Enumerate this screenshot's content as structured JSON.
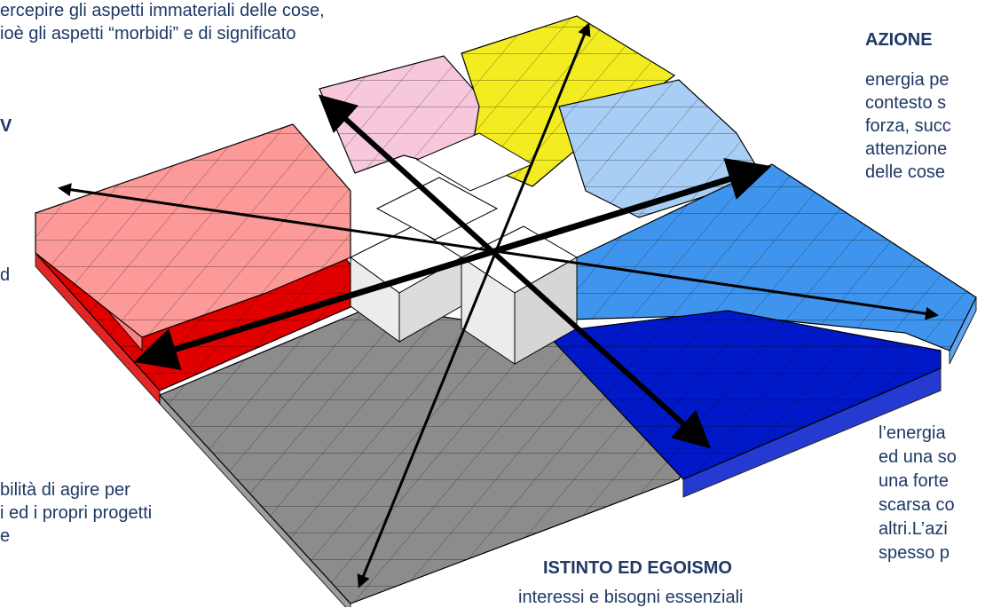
{
  "texts": {
    "top_left_line1": "ercepire gli aspetti immateriali delle cose,",
    "top_left_line2": "ioè gli aspetti “morbidi” e di significato",
    "left_fragment_1": "V",
    "left_fragment_2": "d",
    "bottom_left_line1": "bilità di agire per",
    "bottom_left_line2": "i ed i propri progetti",
    "bottom_left_line3": "e",
    "azione_title": "AZIONE",
    "azione_line1": "energia pe",
    "azione_line2": "contesto s",
    "azione_line3": "forza, succ",
    "azione_line4": "attenzione",
    "azione_line5": "delle cose",
    "bottom_right_line1": "l’energia",
    "bottom_right_line2": "ed una so",
    "bottom_right_line3": "una forte",
    "bottom_right_line4": "scarsa co",
    "bottom_right_line5": "altri.L’azi",
    "bottom_right_line6": "spesso p",
    "istinto_title": "ISTINTO ED EGOISMO",
    "istinto_line1": "interessi e bisogni essenziali"
  },
  "colors": {
    "text": "#1f3864",
    "grey": "#8c8c8c",
    "red": "#e00000",
    "light_red": "#fb9a98",
    "pink": "#f7c8dc",
    "yellow": "#f2ec20",
    "light_blue": "#a8cef5",
    "mid_blue": "#3f95ee",
    "dark_blue": "#0018c8",
    "white": "#ffffff",
    "arrow": "#000000"
  },
  "regions": [
    {
      "name": "grey-region",
      "color": "grey"
    },
    {
      "name": "red-region",
      "color": "red"
    },
    {
      "name": "light-red-region",
      "color": "light_red"
    },
    {
      "name": "pink-region",
      "color": "pink"
    },
    {
      "name": "yellow-region",
      "color": "yellow"
    },
    {
      "name": "light-blue-region",
      "color": "light_blue"
    },
    {
      "name": "mid-blue-region",
      "color": "mid_blue"
    },
    {
      "name": "dark-blue-region",
      "color": "dark_blue"
    },
    {
      "name": "white-center-region",
      "color": "white"
    }
  ]
}
